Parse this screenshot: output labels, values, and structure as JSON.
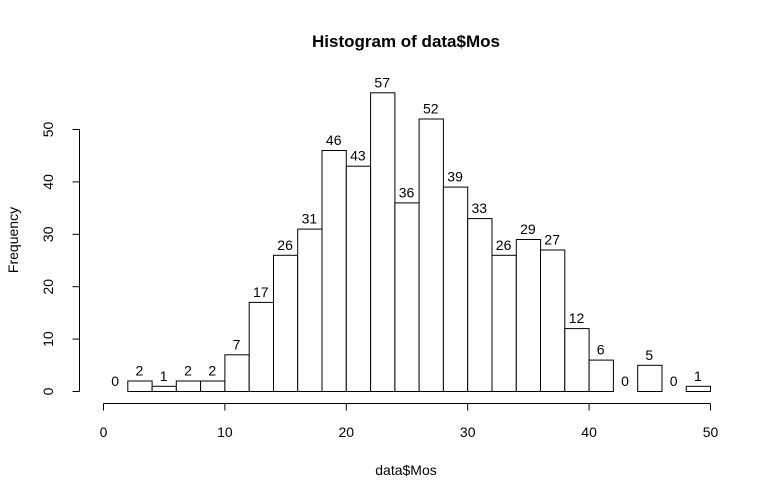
{
  "chart_data": {
    "type": "bar",
    "title": "Histogram of data$Mos",
    "xlabel": "data$Mos",
    "ylabel": "Frequency",
    "bin_width": 2,
    "xlim": [
      0,
      50
    ],
    "ylim": [
      0,
      57
    ],
    "x_ticks": [
      0,
      10,
      20,
      30,
      40,
      50
    ],
    "y_ticks": [
      0,
      10,
      20,
      30,
      40,
      50
    ],
    "bins": [
      {
        "start": 0,
        "end": 2,
        "value": 0
      },
      {
        "start": 2,
        "end": 4,
        "value": 2
      },
      {
        "start": 4,
        "end": 6,
        "value": 1
      },
      {
        "start": 6,
        "end": 8,
        "value": 2
      },
      {
        "start": 8,
        "end": 10,
        "value": 2
      },
      {
        "start": 10,
        "end": 12,
        "value": 7
      },
      {
        "start": 12,
        "end": 14,
        "value": 17
      },
      {
        "start": 14,
        "end": 16,
        "value": 26
      },
      {
        "start": 16,
        "end": 18,
        "value": 31
      },
      {
        "start": 18,
        "end": 20,
        "value": 46
      },
      {
        "start": 20,
        "end": 22,
        "value": 43
      },
      {
        "start": 22,
        "end": 24,
        "value": 57
      },
      {
        "start": 24,
        "end": 26,
        "value": 36
      },
      {
        "start": 26,
        "end": 28,
        "value": 52
      },
      {
        "start": 28,
        "end": 30,
        "value": 39
      },
      {
        "start": 30,
        "end": 32,
        "value": 33
      },
      {
        "start": 32,
        "end": 34,
        "value": 26
      },
      {
        "start": 34,
        "end": 36,
        "value": 29
      },
      {
        "start": 36,
        "end": 38,
        "value": 27
      },
      {
        "start": 38,
        "end": 40,
        "value": 12
      },
      {
        "start": 40,
        "end": 42,
        "value": 6
      },
      {
        "start": 42,
        "end": 44,
        "value": 0
      },
      {
        "start": 44,
        "end": 46,
        "value": 5
      },
      {
        "start": 46,
        "end": 48,
        "value": 0
      },
      {
        "start": 48,
        "end": 50,
        "value": 1
      }
    ],
    "grid": false,
    "legend": "none"
  }
}
